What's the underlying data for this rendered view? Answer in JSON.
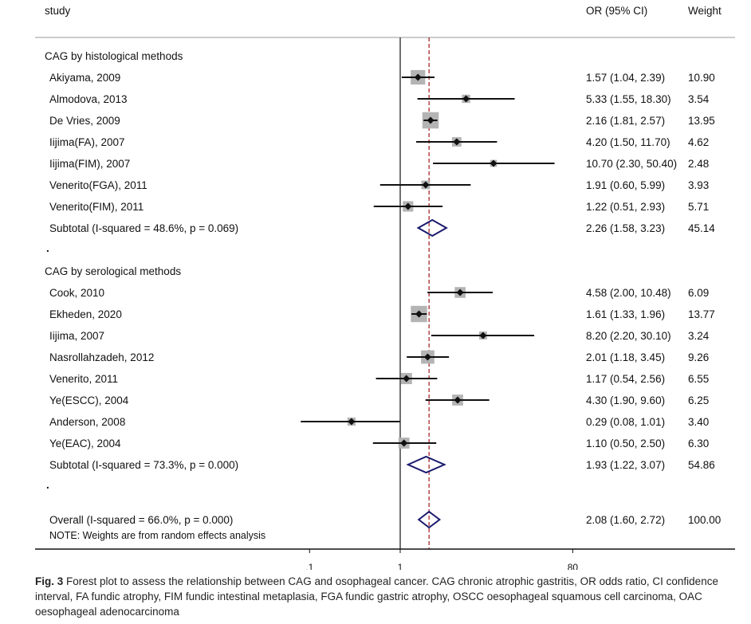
{
  "header": {
    "study": "study",
    "or": "OR (95% CI)",
    "weight": "Weight"
  },
  "chart_data": {
    "type": "forest",
    "axis_scale": "log",
    "null_value": 1,
    "overall_or": 2.08,
    "tick_labels": [
      ".1",
      "1",
      "80"
    ],
    "ticks": [
      0.1,
      1,
      80
    ],
    "xlim": [
      0.0125,
      80
    ],
    "note": "NOTE: Weights are from random effects analysis",
    "rows": [
      {
        "kind": "group",
        "label": "CAG by histological methods"
      },
      {
        "kind": "study",
        "label": "Akiyama, 2009",
        "or": 1.57,
        "lo": 1.04,
        "hi": 2.39,
        "ci": "1.57 (1.04, 2.39)",
        "weight": "10.90"
      },
      {
        "kind": "study",
        "label": "Almodova, 2013",
        "or": 5.33,
        "lo": 1.55,
        "hi": 18.3,
        "ci": "5.33 (1.55, 18.30)",
        "weight": "3.54"
      },
      {
        "kind": "study",
        "label": "De Vries, 2009",
        "or": 2.16,
        "lo": 1.81,
        "hi": 2.57,
        "ci": "2.16 (1.81, 2.57)",
        "weight": "13.95"
      },
      {
        "kind": "study",
        "label": "Iijima(FA), 2007",
        "or": 4.2,
        "lo": 1.5,
        "hi": 11.7,
        "ci": "4.20 (1.50, 11.70)",
        "weight": "4.62"
      },
      {
        "kind": "study",
        "label": "Iijima(FIM), 2007",
        "or": 10.7,
        "lo": 2.3,
        "hi": 50.4,
        "ci": "10.70 (2.30, 50.40)",
        "weight": "2.48"
      },
      {
        "kind": "study",
        "label": "Venerito(FGA), 2011",
        "or": 1.91,
        "lo": 0.6,
        "hi": 5.99,
        "ci": "1.91 (0.60, 5.99)",
        "weight": "3.93"
      },
      {
        "kind": "study",
        "label": "Venerito(FIM), 2011",
        "or": 1.22,
        "lo": 0.51,
        "hi": 2.93,
        "ci": "1.22 (0.51, 2.93)",
        "weight": "5.71"
      },
      {
        "kind": "subtotal",
        "label": "Subtotal  (I-squared = 48.6%, p = 0.069)",
        "or": 2.26,
        "lo": 1.58,
        "hi": 3.23,
        "ci": "2.26 (1.58, 3.23)",
        "weight": "45.14"
      },
      {
        "kind": "dot",
        "label": "."
      },
      {
        "kind": "group",
        "label": "CAG by serological methods"
      },
      {
        "kind": "study",
        "label": "Cook, 2010",
        "or": 4.58,
        "lo": 2.0,
        "hi": 10.48,
        "ci": "4.58 (2.00, 10.48)",
        "weight": "6.09"
      },
      {
        "kind": "study",
        "label": "Ekheden, 2020",
        "or": 1.61,
        "lo": 1.33,
        "hi": 1.96,
        "ci": "1.61 (1.33, 1.96)",
        "weight": "13.77"
      },
      {
        "kind": "study",
        "label": "Iijima, 2007",
        "or": 8.2,
        "lo": 2.2,
        "hi": 30.1,
        "ci": "8.20 (2.20, 30.10)",
        "weight": "3.24"
      },
      {
        "kind": "study",
        "label": "Nasrollahzadeh, 2012",
        "or": 2.01,
        "lo": 1.18,
        "hi": 3.45,
        "ci": "2.01 (1.18, 3.45)",
        "weight": "9.26"
      },
      {
        "kind": "study",
        "label": "Venerito, 2011",
        "or": 1.17,
        "lo": 0.54,
        "hi": 2.56,
        "ci": "1.17 (0.54, 2.56)",
        "weight": "6.55"
      },
      {
        "kind": "study",
        "label": "Ye(ESCC), 2004",
        "or": 4.3,
        "lo": 1.9,
        "hi": 9.6,
        "ci": "4.30 (1.90, 9.60)",
        "weight": "6.25"
      },
      {
        "kind": "study",
        "label": "Anderson, 2008",
        "or": 0.29,
        "lo": 0.08,
        "hi": 1.01,
        "ci": "0.29 (0.08, 1.01)",
        "weight": "3.40"
      },
      {
        "kind": "study",
        "label": "Ye(EAC), 2004",
        "or": 1.1,
        "lo": 0.5,
        "hi": 2.5,
        "ci": "1.10 (0.50, 2.50)",
        "weight": "6.30"
      },
      {
        "kind": "subtotal",
        "label": "Subtotal  (I-squared = 73.3%, p = 0.000)",
        "or": 1.93,
        "lo": 1.22,
        "hi": 3.07,
        "ci": "1.93 (1.22, 3.07)",
        "weight": "54.86"
      },
      {
        "kind": "dot",
        "label": "."
      },
      {
        "kind": "overall",
        "label": "Overall  (I-squared = 66.0%, p = 0.000)",
        "or": 2.08,
        "lo": 1.6,
        "hi": 2.72,
        "ci": "2.08 (1.60, 2.72)",
        "weight": "100.00"
      }
    ]
  },
  "caption": {
    "fig": "Fig. 3",
    "text": "Forest plot to assess the relationship between CAG and osophageal cancer. CAG chronic atrophic gastritis, OR odds ratio, CI confidence interval, FA fundic atrophy, FIM fundic intestinal metaplasia, FGA fundic gastric atrophy, OSCC oesophageal squamous cell carcinoma, OAC oesophageal adenocarcinoma"
  },
  "colors": {
    "marker": "#111111",
    "box": "#b4b4b4",
    "diamond": "#1a1a6e",
    "overall_line": "#a01818",
    "rule": "#999999"
  }
}
